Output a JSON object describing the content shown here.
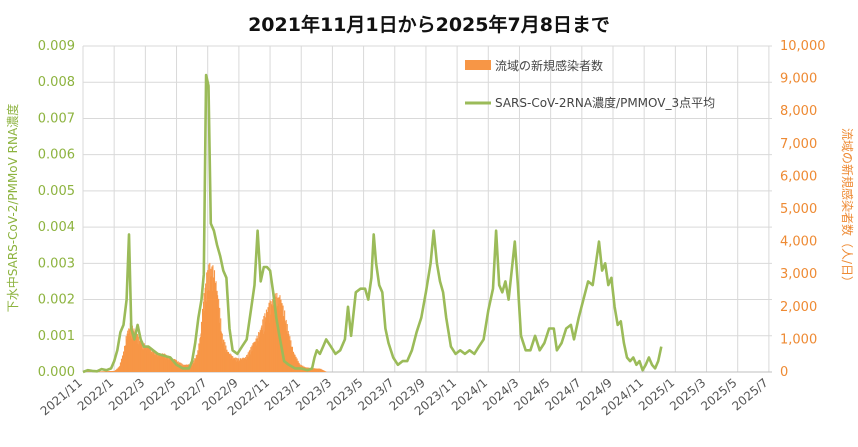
{
  "chart_data": {
    "type": "line+bar",
    "title": "2021年11月1日から2025年7月8日まで",
    "y_left_label": "下水中SARS-CoV-2/PMMoV RNA濃度",
    "y_right_label": "流域の新規感染者数（人/日）",
    "y_left_ticks": [
      "0.000",
      "0.001",
      "0.002",
      "0.003",
      "0.004",
      "0.005",
      "0.006",
      "0.007",
      "0.008",
      "0.009"
    ],
    "y_right_ticks": [
      "0",
      "1,000",
      "2,000",
      "3,000",
      "4,000",
      "5,000",
      "6,000",
      "7,000",
      "8,000",
      "9,000",
      "10,000"
    ],
    "y_left_range": [
      0,
      0.009
    ],
    "y_right_range": [
      0,
      10000
    ],
    "x_ticks": [
      "2021/11",
      "2022/1",
      "2022/3",
      "2022/5",
      "2022/7",
      "2022/9",
      "2022/11",
      "2023/1",
      "2023/3",
      "2023/5",
      "2023/7",
      "2023/9",
      "2023/11",
      "2024/1",
      "2024/3",
      "2024/5",
      "2024/7",
      "2024/9",
      "2024/11",
      "2025/1",
      "2025/3",
      "2025/5",
      "2025/7"
    ],
    "x_range_months": [
      0,
      44.2
    ],
    "grid": true,
    "legend_position": "top-right",
    "colors": {
      "line": "#9BBB59",
      "bars": "#F79646",
      "left_axis": "#8DB33F",
      "right_axis": "#EE8A33"
    },
    "series": [
      {
        "name": "流域の新規感染者数",
        "kind": "bar",
        "axis": "right",
        "points": [
          [
            0,
            10
          ],
          [
            1,
            15
          ],
          [
            2,
            30
          ],
          [
            2.3,
            150
          ],
          [
            2.6,
            600
          ],
          [
            2.8,
            1100
          ],
          [
            3,
            1300
          ],
          [
            3.3,
            1100
          ],
          [
            3.6,
            900
          ],
          [
            4,
            700
          ],
          [
            4.4,
            600
          ],
          [
            4.8,
            500
          ],
          [
            5.2,
            480
          ],
          [
            5.6,
            400
          ],
          [
            6,
            300
          ],
          [
            6.4,
            200
          ],
          [
            6.8,
            200
          ],
          [
            7,
            250
          ],
          [
            7.3,
            500
          ],
          [
            7.5,
            1000
          ],
          [
            7.7,
            2000
          ],
          [
            7.9,
            2600
          ],
          [
            8.1,
            2900
          ],
          [
            8.3,
            2800
          ],
          [
            8.5,
            2500
          ],
          [
            8.7,
            1800
          ],
          [
            8.9,
            1000
          ],
          [
            9.2,
            600
          ],
          [
            9.6,
            400
          ],
          [
            10,
            350
          ],
          [
            10.4,
            400
          ],
          [
            10.8,
            700
          ],
          [
            11.2,
            1000
          ],
          [
            11.6,
            1500
          ],
          [
            12,
            1900
          ],
          [
            12.3,
            2100
          ],
          [
            12.6,
            2000
          ],
          [
            12.9,
            1600
          ],
          [
            13.2,
            1000
          ],
          [
            13.5,
            500
          ],
          [
            13.9,
            200
          ],
          [
            14.3,
            120
          ],
          [
            14.8,
            100
          ],
          [
            15.2,
            90
          ],
          [
            15.6,
            0
          ]
        ]
      },
      {
        "name": "SARS-CoV-2RNA濃度/PMMOV_3点平均",
        "kind": "line",
        "axis": "left",
        "points": [
          [
            0,
            0
          ],
          [
            0.3,
            5e-05
          ],
          [
            0.6,
            3e-05
          ],
          [
            0.9,
            2e-05
          ],
          [
            1.2,
            8e-05
          ],
          [
            1.5,
            5e-05
          ],
          [
            1.8,
            0.0001
          ],
          [
            2.0,
            0.0003
          ],
          [
            2.2,
            0.0006
          ],
          [
            2.4,
            0.0011
          ],
          [
            2.6,
            0.0013
          ],
          [
            2.8,
            0.002
          ],
          [
            2.95,
            0.0038
          ],
          [
            3.1,
            0.0012
          ],
          [
            3.3,
            0.0009
          ],
          [
            3.5,
            0.0013
          ],
          [
            3.7,
            0.0009
          ],
          [
            3.9,
            0.0007
          ],
          [
            4.2,
            0.0007
          ],
          [
            4.5,
            0.0006
          ],
          [
            4.8,
            0.0005
          ],
          [
            5.2,
            0.00045
          ],
          [
            5.6,
            0.0004
          ],
          [
            6.0,
            0.0002
          ],
          [
            6.4,
            0.0001
          ],
          [
            6.8,
            0.0001
          ],
          [
            7.0,
            0.0003
          ],
          [
            7.2,
            0.0008
          ],
          [
            7.4,
            0.0015
          ],
          [
            7.6,
            0.002
          ],
          [
            7.75,
            0.0027
          ],
          [
            7.9,
            0.0082
          ],
          [
            8.05,
            0.0079
          ],
          [
            8.2,
            0.0041
          ],
          [
            8.4,
            0.0039
          ],
          [
            8.6,
            0.0035
          ],
          [
            8.8,
            0.0032
          ],
          [
            9.0,
            0.0028
          ],
          [
            9.2,
            0.0026
          ],
          [
            9.4,
            0.0012
          ],
          [
            9.6,
            0.0006
          ],
          [
            9.9,
            0.0005
          ],
          [
            10.2,
            0.0007
          ],
          [
            10.5,
            0.0009
          ],
          [
            10.8,
            0.0018
          ],
          [
            11.0,
            0.0024
          ],
          [
            11.2,
            0.0039
          ],
          [
            11.4,
            0.0025
          ],
          [
            11.6,
            0.0029
          ],
          [
            11.8,
            0.0029
          ],
          [
            12.0,
            0.0028
          ],
          [
            12.2,
            0.0022
          ],
          [
            12.4,
            0.0015
          ],
          [
            12.6,
            0.001
          ],
          [
            12.9,
            0.0003
          ],
          [
            13.2,
            0.0002
          ],
          [
            13.6,
            0.0001
          ],
          [
            14.0,
            0.0001
          ],
          [
            14.4,
            5e-05
          ],
          [
            14.7,
            0.0001
          ],
          [
            14.85,
            0.0004
          ],
          [
            15.0,
            0.0006
          ],
          [
            15.2,
            0.0005
          ],
          [
            15.4,
            0.0007
          ],
          [
            15.6,
            0.0009
          ],
          [
            15.9,
            0.0007
          ],
          [
            16.2,
            0.0005
          ],
          [
            16.5,
            0.0006
          ],
          [
            16.8,
            0.0009
          ],
          [
            17.0,
            0.0018
          ],
          [
            17.2,
            0.001
          ],
          [
            17.5,
            0.0022
          ],
          [
            17.8,
            0.0023
          ],
          [
            18.1,
            0.0023
          ],
          [
            18.3,
            0.002
          ],
          [
            18.5,
            0.0026
          ],
          [
            18.65,
            0.0038
          ],
          [
            18.8,
            0.003
          ],
          [
            19.0,
            0.0024
          ],
          [
            19.2,
            0.0022
          ],
          [
            19.4,
            0.0012
          ],
          [
            19.6,
            0.0008
          ],
          [
            19.9,
            0.0004
          ],
          [
            20.2,
            0.0002
          ],
          [
            20.5,
            0.0003
          ],
          [
            20.8,
            0.0003
          ],
          [
            21.1,
            0.0006
          ],
          [
            21.4,
            0.0011
          ],
          [
            21.7,
            0.0015
          ],
          [
            22.0,
            0.0022
          ],
          [
            22.3,
            0.003
          ],
          [
            22.5,
            0.0039
          ],
          [
            22.7,
            0.003
          ],
          [
            22.9,
            0.0025
          ],
          [
            23.1,
            0.0022
          ],
          [
            23.3,
            0.0015
          ],
          [
            23.6,
            0.0007
          ],
          [
            23.9,
            0.0005
          ],
          [
            24.2,
            0.0006
          ],
          [
            24.5,
            0.0005
          ],
          [
            24.8,
            0.0006
          ],
          [
            25.1,
            0.0005
          ],
          [
            25.4,
            0.0007
          ],
          [
            25.7,
            0.0009
          ],
          [
            26.0,
            0.0017
          ],
          [
            26.3,
            0.0023
          ],
          [
            26.5,
            0.0039
          ],
          [
            26.7,
            0.0024
          ],
          [
            26.9,
            0.0022
          ],
          [
            27.1,
            0.0025
          ],
          [
            27.3,
            0.002
          ],
          [
            27.5,
            0.0028
          ],
          [
            27.7,
            0.0036
          ],
          [
            27.9,
            0.0024
          ],
          [
            28.1,
            0.001
          ],
          [
            28.4,
            0.0006
          ],
          [
            28.7,
            0.0006
          ],
          [
            29.0,
            0.001
          ],
          [
            29.3,
            0.0006
          ],
          [
            29.6,
            0.0008
          ],
          [
            29.9,
            0.0012
          ],
          [
            30.2,
            0.0012
          ],
          [
            30.4,
            0.0006
          ],
          [
            30.7,
            0.0008
          ],
          [
            31.0,
            0.0012
          ],
          [
            31.3,
            0.0013
          ],
          [
            31.5,
            0.0009
          ],
          [
            31.8,
            0.0015
          ],
          [
            32.1,
            0.002
          ],
          [
            32.4,
            0.0025
          ],
          [
            32.7,
            0.0024
          ],
          [
            32.9,
            0.003
          ],
          [
            33.1,
            0.0036
          ],
          [
            33.3,
            0.0028
          ],
          [
            33.5,
            0.003
          ],
          [
            33.7,
            0.0024
          ],
          [
            33.9,
            0.0026
          ],
          [
            34.1,
            0.0018
          ],
          [
            34.3,
            0.0013
          ],
          [
            34.5,
            0.0014
          ],
          [
            34.7,
            0.0008
          ],
          [
            34.9,
            0.0004
          ],
          [
            35.1,
            0.0003
          ],
          [
            35.3,
            0.0004
          ],
          [
            35.5,
            0.0002
          ],
          [
            35.7,
            0.0003
          ],
          [
            35.9,
            5e-05
          ],
          [
            36.1,
            0.0002
          ],
          [
            36.3,
            0.0004
          ],
          [
            36.5,
            0.0002
          ],
          [
            36.7,
            0.0001
          ],
          [
            36.9,
            0.0003
          ],
          [
            37.1,
            0.0007
          ]
        ]
      }
    ]
  }
}
